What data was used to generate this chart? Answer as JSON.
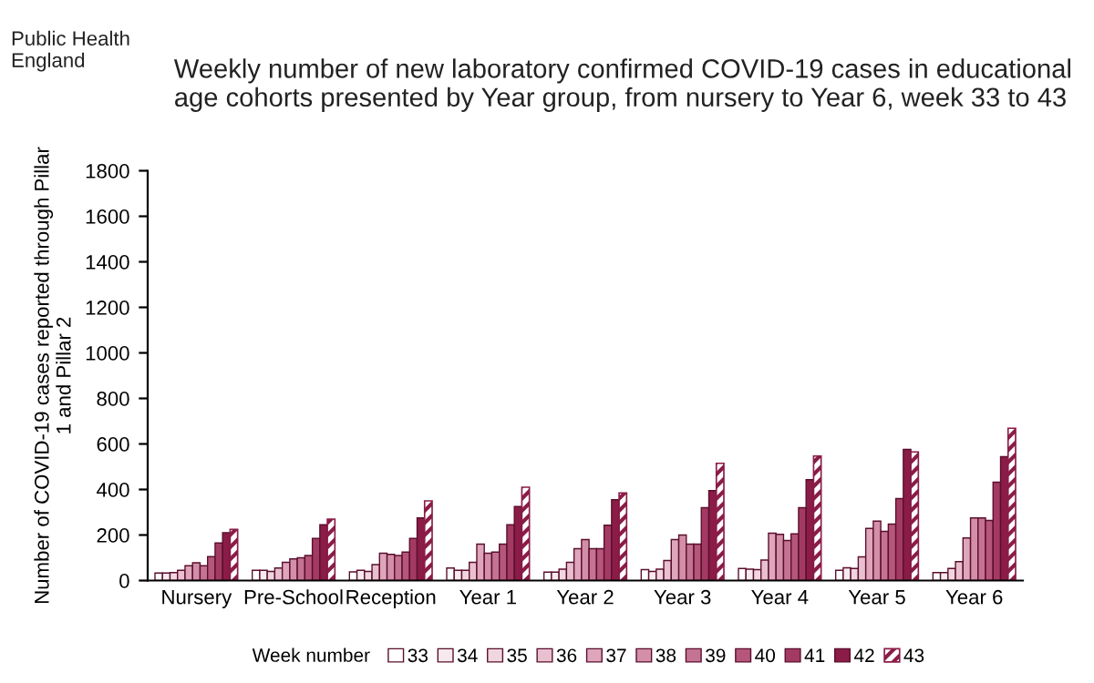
{
  "chart_data": {
    "type": "bar",
    "title": "Weekly number of new laboratory confirmed COVID-19 cases in educational\nage cohorts presented by Year group, from nursery to Year 6, week 33 to 43",
    "ylabel": "Number of COVID-19 cases reported through Pillar\n1 and Pillar 2",
    "legend_title": "Week number",
    "annotations": [
      "Public Health\nEngland"
    ],
    "categories": [
      "Nursery",
      "Pre-School",
      "Reception",
      "Year 1",
      "Year 2",
      "Year 3",
      "Year 4",
      "Year 5",
      "Year 6"
    ],
    "series": [
      {
        "name": "33",
        "color": "#ffffff",
        "values": [
          33,
          45,
          38,
          55,
          37,
          48,
          53,
          45,
          35
        ]
      },
      {
        "name": "34",
        "color": "#f8e9ef",
        "values": [
          33,
          45,
          45,
          45,
          37,
          40,
          50,
          56,
          35
        ]
      },
      {
        "name": "35",
        "color": "#f1d6e0",
        "values": [
          35,
          40,
          40,
          45,
          50,
          50,
          48,
          53,
          53
        ]
      },
      {
        "name": "36",
        "color": "#e9c0cf",
        "values": [
          45,
          55,
          70,
          80,
          80,
          88,
          90,
          104,
          83
        ]
      },
      {
        "name": "37",
        "color": "#dfa6bb",
        "values": [
          65,
          80,
          120,
          160,
          140,
          180,
          208,
          229,
          187
        ]
      },
      {
        "name": "38",
        "color": "#d38ea8",
        "values": [
          78,
          95,
          115,
          120,
          180,
          200,
          203,
          261,
          275
        ]
      },
      {
        "name": "39",
        "color": "#c57392",
        "values": [
          65,
          100,
          110,
          125,
          140,
          160,
          176,
          216,
          275
        ]
      },
      {
        "name": "40",
        "color": "#b5567a",
        "values": [
          105,
          110,
          125,
          160,
          140,
          160,
          205,
          248,
          264
        ]
      },
      {
        "name": "41",
        "color": "#a33a63",
        "values": [
          165,
          185,
          185,
          245,
          243,
          320,
          320,
          360,
          432
        ]
      },
      {
        "name": "42",
        "color": "#8a1c47",
        "values": [
          210,
          245,
          275,
          325,
          355,
          395,
          443,
          576,
          544
        ]
      },
      {
        "name": "43",
        "color": "#8a1c47",
        "values": [
          225,
          270,
          350,
          410,
          385,
          515,
          547,
          565,
          669
        ]
      }
    ],
    "ylim": [
      0,
      1800
    ],
    "yticks": [
      0,
      200,
      400,
      600,
      800,
      1000,
      1200,
      1400,
      1600,
      1800
    ],
    "grid": false,
    "legend": "bottom"
  }
}
